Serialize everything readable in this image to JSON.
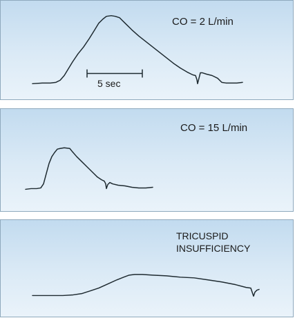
{
  "panels": [
    {
      "label": "CO = 2 L/min"
    },
    {
      "label": "CO = 15 L/min"
    },
    {
      "label_lines": [
        "TRICUSPID",
        "INSUFFICIENCY"
      ]
    }
  ],
  "scale_bar": {
    "label": "5 sec"
  }
}
